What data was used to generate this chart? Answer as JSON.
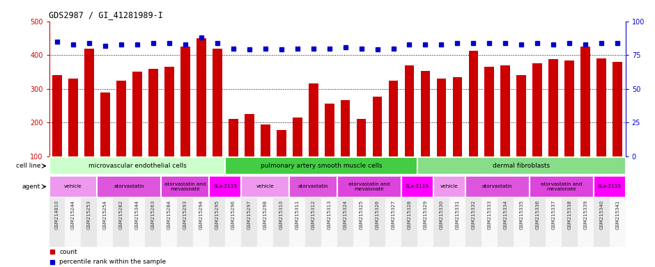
{
  "title": "GDS2987 / GI_41281989-I",
  "samples": [
    "GSM214810",
    "GSM215244",
    "GSM215253",
    "GSM215254",
    "GSM215282",
    "GSM215344",
    "GSM215263",
    "GSM215284",
    "GSM215293",
    "GSM215294",
    "GSM215295",
    "GSM215296",
    "GSM215297",
    "GSM215298",
    "GSM215310",
    "GSM215311",
    "GSM215312",
    "GSM215313",
    "GSM215324",
    "GSM215325",
    "GSM215326",
    "GSM215327",
    "GSM215328",
    "GSM215329",
    "GSM215330",
    "GSM215331",
    "GSM215332",
    "GSM215333",
    "GSM215334",
    "GSM215335",
    "GSM215336",
    "GSM215337",
    "GSM215338",
    "GSM215339",
    "GSM215340",
    "GSM215341"
  ],
  "counts": [
    340,
    330,
    420,
    290,
    325,
    350,
    360,
    365,
    425,
    450,
    420,
    210,
    225,
    195,
    178,
    215,
    315,
    257,
    267,
    210,
    277,
    325,
    370,
    352,
    330,
    335,
    413,
    365,
    370,
    340,
    375,
    389,
    383,
    425,
    390,
    380
  ],
  "percentiles": [
    85,
    83,
    84,
    82,
    83,
    83,
    84,
    84,
    83,
    88,
    84,
    80,
    79,
    80,
    79,
    80,
    80,
    80,
    81,
    80,
    79,
    80,
    83,
    83,
    83,
    84,
    84,
    84,
    84,
    83,
    84,
    83,
    84,
    83,
    84,
    84
  ],
  "bar_color": "#cc0000",
  "dot_color": "#0000cc",
  "ylim_left": [
    100,
    500
  ],
  "ylim_right": [
    0,
    100
  ],
  "yticks_left": [
    100,
    200,
    300,
    400,
    500
  ],
  "yticks_right": [
    0,
    25,
    50,
    75,
    100
  ],
  "grid_values": [
    200,
    300,
    400
  ],
  "cell_line_groups": [
    {
      "label": "microvascular endothelial cells",
      "start": 0,
      "end": 11,
      "color": "#ccffcc"
    },
    {
      "label": "pulmonary artery smooth muscle cells",
      "start": 11,
      "end": 23,
      "color": "#44dd44"
    },
    {
      "label": "dermal fibroblasts",
      "start": 23,
      "end": 36,
      "color": "#88ee88"
    }
  ],
  "agent_groups": [
    {
      "label": "vehicle",
      "start": 0,
      "end": 3,
      "color": "#ee99ee"
    },
    {
      "label": "atorvastatin",
      "start": 3,
      "end": 7,
      "color": "#dd55dd"
    },
    {
      "label": "atorvastatin and\nmevalonate",
      "start": 7,
      "end": 10,
      "color": "#dd44dd"
    },
    {
      "label": "SLx-2119",
      "start": 10,
      "end": 12,
      "color": "#ff00ff"
    },
    {
      "label": "vehicle",
      "start": 12,
      "end": 15,
      "color": "#ee99ee"
    },
    {
      "label": "atorvastatin",
      "start": 15,
      "end": 18,
      "color": "#dd55dd"
    },
    {
      "label": "atorvastatin and\nmevalonate",
      "start": 18,
      "end": 22,
      "color": "#dd44dd"
    },
    {
      "label": "SLx-2119",
      "start": 22,
      "end": 24,
      "color": "#ff00ff"
    },
    {
      "label": "vehicle",
      "start": 24,
      "end": 26,
      "color": "#ee99ee"
    },
    {
      "label": "atorvastatin",
      "start": 26,
      "end": 30,
      "color": "#dd55dd"
    },
    {
      "label": "atorvastatin and\nmevalonate",
      "start": 30,
      "end": 34,
      "color": "#dd44dd"
    },
    {
      "label": "SLx-2119",
      "start": 34,
      "end": 36,
      "color": "#ff00ff"
    }
  ],
  "bg_color": "#ffffff",
  "left_axis_color": "#cc0000",
  "right_axis_color": "#0000cc"
}
